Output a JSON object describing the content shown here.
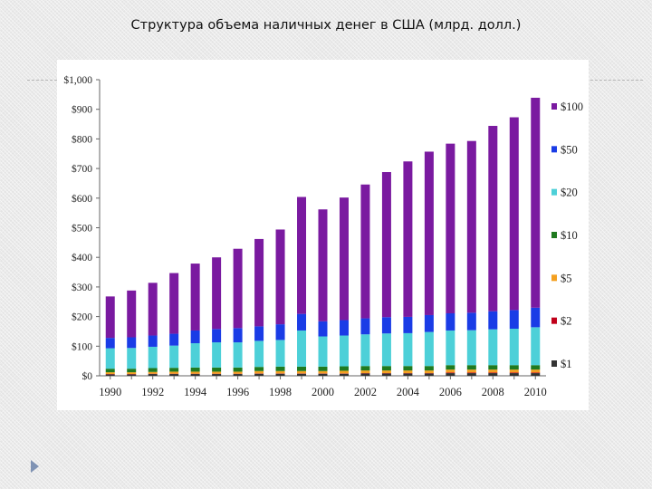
{
  "slide": {
    "title": "Структура объема наличных денег в США (млрд. долл.)"
  },
  "chart_data": {
    "type": "bar",
    "stacked": true,
    "title": "Структура объема наличных денег в США (млрд. долл.)",
    "xlabel": "",
    "ylabel": "",
    "ylim": [
      0,
      1000
    ],
    "y_ticks": [
      0,
      100,
      200,
      300,
      400,
      500,
      600,
      700,
      800,
      900,
      1000
    ],
    "y_tick_labels": [
      "$0",
      "$100",
      "$200",
      "$300",
      "$400",
      "$500",
      "$600",
      "$700",
      "$800",
      "$900",
      "$1,000"
    ],
    "categories": [
      "1990",
      "1991",
      "1992",
      "1993",
      "1994",
      "1995",
      "1996",
      "1997",
      "1998",
      "1999",
      "2000",
      "2001",
      "2002",
      "2003",
      "2004",
      "2005",
      "2006",
      "2007",
      "2008",
      "2009",
      "2010"
    ],
    "x_tick_labels": [
      "1990",
      "1992",
      "1994",
      "1996",
      "1998",
      "2000",
      "2002",
      "2004",
      "2006",
      "2008",
      "2010"
    ],
    "grid": false,
    "legend_position": "right",
    "series": [
      {
        "name": "$1",
        "color": "#333333",
        "values": [
          5,
          5,
          6,
          6,
          6,
          6,
          6,
          7,
          7,
          7,
          7,
          7,
          8,
          8,
          8,
          8,
          9,
          9,
          9,
          9,
          9
        ]
      },
      {
        "name": "$2",
        "color": "#c0001a",
        "values": [
          1,
          1,
          1,
          1,
          1,
          1,
          1,
          1,
          1,
          1,
          1,
          1,
          1,
          1,
          1,
          1,
          2,
          2,
          2,
          2,
          2
        ]
      },
      {
        "name": "$5",
        "color": "#f4a020",
        "values": [
          6,
          6,
          6,
          7,
          7,
          7,
          7,
          8,
          8,
          8,
          8,
          9,
          9,
          9,
          9,
          9,
          10,
          10,
          10,
          10,
          10
        ]
      },
      {
        "name": "$10",
        "color": "#1f7a1f",
        "values": [
          12,
          12,
          13,
          13,
          14,
          14,
          14,
          14,
          15,
          15,
          15,
          15,
          15,
          15,
          15,
          15,
          15,
          15,
          15,
          15,
          15
        ]
      },
      {
        "name": "$20",
        "color": "#4dd0d8",
        "values": [
          69,
          70,
          72,
          75,
          82,
          85,
          85,
          88,
          90,
          122,
          102,
          104,
          107,
          110,
          111,
          115,
          117,
          118,
          121,
          123,
          128
        ]
      },
      {
        "name": "$50",
        "color": "#1a3ce6",
        "values": [
          35,
          36,
          38,
          40,
          43,
          45,
          48,
          49,
          53,
          56,
          51,
          52,
          54,
          55,
          55,
          57,
          58,
          59,
          61,
          63,
          66
        ]
      },
      {
        "name": "$100",
        "color": "#7a1aa0",
        "values": [
          140,
          158,
          178,
          205,
          226,
          242,
          268,
          295,
          320,
          395,
          378,
          414,
          452,
          490,
          525,
          552,
          573,
          580,
          626,
          651,
          709
        ]
      }
    ]
  }
}
